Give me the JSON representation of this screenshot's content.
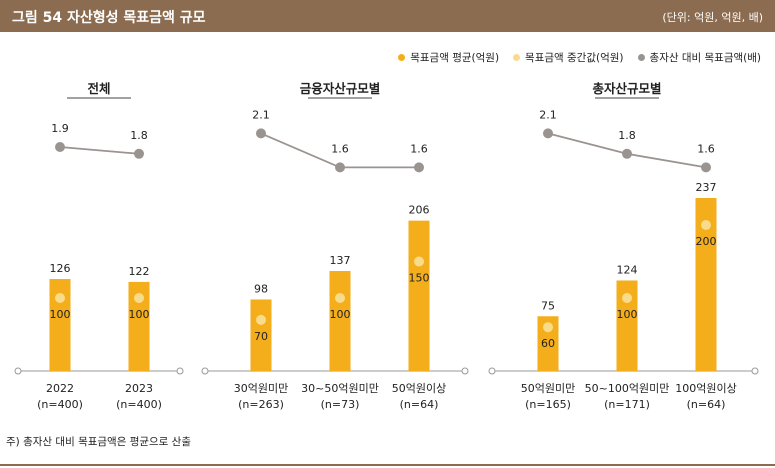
{
  "header": {
    "title": "그림 54  자산형성 목표금액 규모",
    "unit": "(단위: 억원, 억원, 배)"
  },
  "legend": [
    {
      "label": "목표금액 평균(억원)",
      "color": "#f5ae1b"
    },
    {
      "label": "목표금액 중간값(억원)",
      "color": "#f8dc8c"
    },
    {
      "label": "총자산 대비 목표금액(배)",
      "color": "#9a9491"
    }
  ],
  "footnote": "주) 총자산 대비 목표금액은 평균으로 산출",
  "chart_data": [
    {
      "type": "bar",
      "title": "전체",
      "categories": [
        [
          "2022",
          "(n=400)"
        ],
        [
          "2023",
          "(n=400)"
        ]
      ],
      "series": [
        {
          "name": "목표금액 평균(억원)",
          "values": [
            126,
            122
          ]
        },
        {
          "name": "목표금액 중간값(억원)",
          "values": [
            100,
            100
          ]
        },
        {
          "name": "총자산 대비 목표금액(배)",
          "type": "line",
          "values": [
            1.9,
            1.8
          ]
        }
      ],
      "ylim": [
        0,
        250
      ]
    },
    {
      "type": "bar",
      "title": "금융자산규모별",
      "categories": [
        [
          "30억원미만",
          "(n=263)"
        ],
        [
          "30~50억원미만",
          "(n=73)"
        ],
        [
          "50억원이상",
          "(n=64)"
        ]
      ],
      "series": [
        {
          "name": "목표금액 평균(억원)",
          "values": [
            98,
            137,
            206
          ]
        },
        {
          "name": "목표금액 중간값(억원)",
          "values": [
            70,
            100,
            150
          ]
        },
        {
          "name": "총자산 대비 목표금액(배)",
          "type": "line",
          "values": [
            2.1,
            1.6,
            1.6
          ]
        }
      ],
      "ylim": [
        0,
        250
      ]
    },
    {
      "type": "bar",
      "title": "총자산규모별",
      "categories": [
        [
          "50억원미만",
          "(n=165)"
        ],
        [
          "50~100억원미만",
          "(n=171)"
        ],
        [
          "100억원이상",
          "(n=64)"
        ]
      ],
      "series": [
        {
          "name": "목표금액 평균(억원)",
          "values": [
            75,
            124,
            237
          ]
        },
        {
          "name": "목표금액 중간값(억원)",
          "values": [
            60,
            100,
            200
          ]
        },
        {
          "name": "총자산 대비 목표금액(배)",
          "type": "line",
          "values": [
            2.1,
            1.8,
            1.6
          ]
        }
      ],
      "ylim": [
        0,
        250
      ]
    }
  ]
}
